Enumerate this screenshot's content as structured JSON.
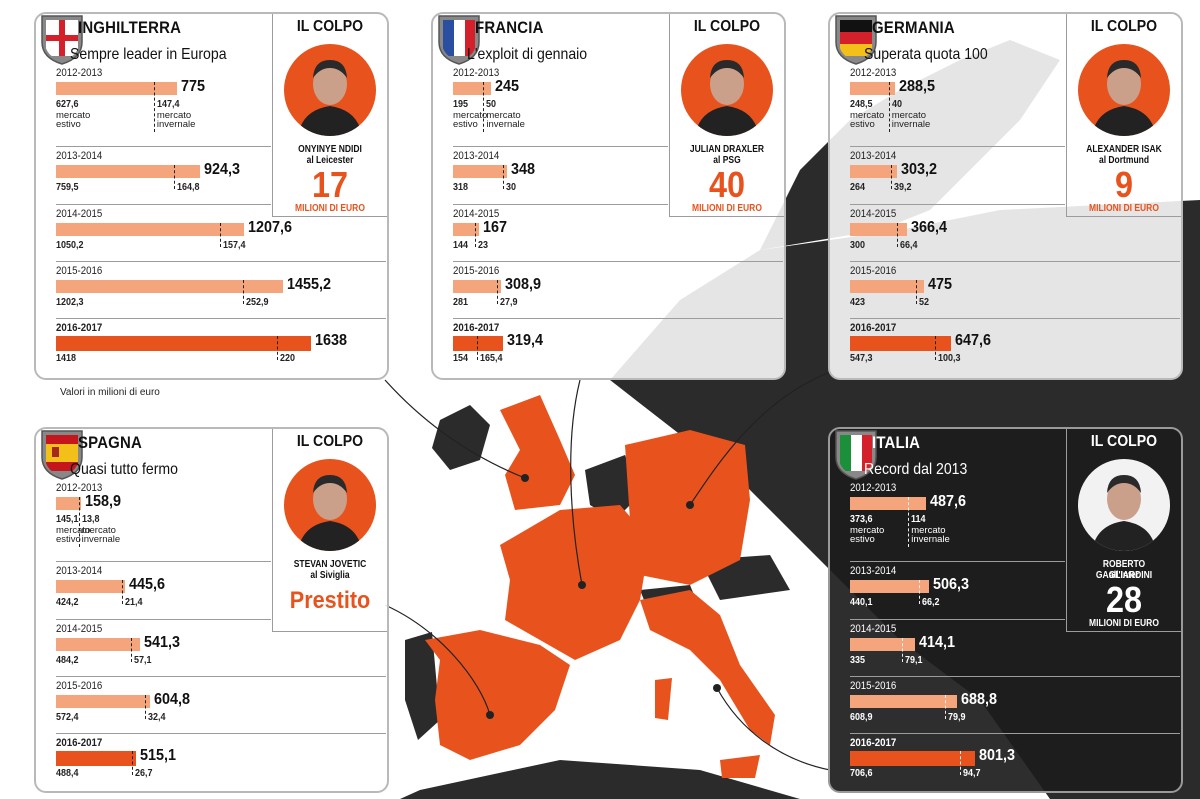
{
  "note": "Valori in milioni di euro",
  "colors": {
    "accent": "#e8531d",
    "bar": "#f4a57b",
    "map_dark": "#2b2b2b",
    "map_land": "#bdbdbd"
  },
  "panels": [
    {
      "id": "inghilterra",
      "country": "INGHILTERRA",
      "subtitle": "Sempre leader in Europa",
      "dark": false,
      "colpo": {
        "title": "IL COLPO",
        "name": "ONYINYE NDIDI",
        "club": "al Leicester",
        "big": "17",
        "unit": "MILIONI DI EURO",
        "photo": "orange"
      },
      "rows": [
        {
          "season": "2012-2013",
          "total": "775",
          "summer": "627,6",
          "winter": "147,4"
        },
        {
          "season": "2013-2014",
          "total": "924,3",
          "summer": "759,5",
          "winter": "164,8"
        },
        {
          "season": "2014-2015",
          "total": "1207,6",
          "summer": "1050,2",
          "winter": "157,4"
        },
        {
          "season": "2015-2016",
          "total": "1455,2",
          "summer": "1202,3",
          "winter": "252,9"
        },
        {
          "season": "2016-2017",
          "total": "1638",
          "summer": "1418",
          "winter": "220"
        }
      ]
    },
    {
      "id": "francia",
      "country": "FRANCIA",
      "subtitle": "L'exploit di gennaio",
      "dark": false,
      "colpo": {
        "title": "IL COLPO",
        "name": "JULIAN DRAXLER",
        "club": "al PSG",
        "big": "40",
        "unit": "MILIONI DI EURO",
        "photo": "orange"
      },
      "rows": [
        {
          "season": "2012-2013",
          "total": "245",
          "summer": "195",
          "winter": "50"
        },
        {
          "season": "2013-2014",
          "total": "348",
          "summer": "318",
          "winter": "30"
        },
        {
          "season": "2014-2015",
          "total": "167",
          "summer": "144",
          "winter": "23"
        },
        {
          "season": "2015-2016",
          "total": "308,9",
          "summer": "281",
          "winter": "27,9"
        },
        {
          "season": "2016-2017",
          "total": "319,4",
          "summer": "154",
          "winter": "165,4"
        }
      ]
    },
    {
      "id": "germania",
      "country": "GERMANIA",
      "subtitle": "Superata quota 100",
      "dark": false,
      "colpo": {
        "title": "IL COLPO",
        "name": "ALEXANDER ISAK",
        "club": "al Dortmund",
        "big": "9",
        "unit": "MILIONI DI EURO",
        "photo": "orange"
      },
      "rows": [
        {
          "season": "2012-2013",
          "total": "288,5",
          "summer": "248,5",
          "winter": "40"
        },
        {
          "season": "2013-2014",
          "total": "303,2",
          "summer": "264",
          "winter": "39,2"
        },
        {
          "season": "2014-2015",
          "total": "366,4",
          "summer": "300",
          "winter": "66,4"
        },
        {
          "season": "2015-2016",
          "total": "475",
          "summer": "423",
          "winter": "52"
        },
        {
          "season": "2016-2017",
          "total": "647,6",
          "summer": "547,3",
          "winter": "100,3"
        }
      ]
    },
    {
      "id": "spagna",
      "country": "SPAGNA",
      "subtitle": "Quasi tutto fermo",
      "dark": false,
      "colpo": {
        "title": "IL COLPO",
        "name": "STEVAN JOVETIC",
        "club": "al Siviglia",
        "big": "Prestito",
        "unit": "",
        "photo": "orange"
      },
      "rows": [
        {
          "season": "2012-2013",
          "total": "158,9",
          "summer": "145,1",
          "winter": "13,8"
        },
        {
          "season": "2013-2014",
          "total": "445,6",
          "summer": "424,2",
          "winter": "21,4"
        },
        {
          "season": "2014-2015",
          "total": "541,3",
          "summer": "484,2",
          "winter": "57,1"
        },
        {
          "season": "2015-2016",
          "total": "604,8",
          "summer": "572,4",
          "winter": "32,4"
        },
        {
          "season": "2016-2017",
          "total": "515,1",
          "summer": "488,4",
          "winter": "26,7"
        }
      ]
    },
    {
      "id": "italia",
      "country": "ITALIA",
      "subtitle": "Record dal 2013",
      "dark": true,
      "colpo": {
        "title": "IL COLPO",
        "name": "ROBERTO GAGLIARDINI",
        "club": "all'Inter",
        "big": "28",
        "unit": "MILIONI DI EURO",
        "photo": "white"
      },
      "rows": [
        {
          "season": "2012-2013",
          "total": "487,6",
          "summer": "373,6",
          "winter": "114"
        },
        {
          "season": "2013-2014",
          "total": "506,3",
          "summer": "440,1",
          "winter": "66,2"
        },
        {
          "season": "2014-2015",
          "total": "414,1",
          "summer": "335",
          "winter": "79,1"
        },
        {
          "season": "2015-2016",
          "total": "688,8",
          "summer": "608,9",
          "winter": "79,9"
        },
        {
          "season": "2016-2017",
          "total": "801,3",
          "summer": "706,6",
          "winter": "94,7"
        }
      ]
    }
  ],
  "captions": {
    "summer": "mercato estivo",
    "winter": "mercato invernale"
  },
  "chart_data": [
    {
      "type": "bar",
      "title": "INGHILTERRA",
      "subtitle": "Sempre leader in Europa",
      "categories": [
        "2012-2013",
        "2013-2014",
        "2014-2015",
        "2015-2016",
        "2016-2017"
      ],
      "series": [
        {
          "name": "mercato estivo",
          "values": [
            627.6,
            759.5,
            1050.2,
            1202.3,
            1418
          ]
        },
        {
          "name": "mercato invernale",
          "values": [
            147.4,
            164.8,
            157.4,
            252.9,
            220
          ]
        }
      ],
      "totals": [
        775,
        924.3,
        1207.6,
        1455.2,
        1638
      ]
    },
    {
      "type": "bar",
      "title": "FRANCIA",
      "subtitle": "L'exploit di gennaio",
      "categories": [
        "2012-2013",
        "2013-2014",
        "2014-2015",
        "2015-2016",
        "2016-2017"
      ],
      "series": [
        {
          "name": "mercato estivo",
          "values": [
            195,
            318,
            144,
            281,
            154
          ]
        },
        {
          "name": "mercato invernale",
          "values": [
            50,
            30,
            23,
            27.9,
            165.4
          ]
        }
      ],
      "totals": [
        245,
        348,
        167,
        308.9,
        319.4
      ]
    },
    {
      "type": "bar",
      "title": "GERMANIA",
      "subtitle": "Superata quota 100",
      "categories": [
        "2012-2013",
        "2013-2014",
        "2014-2015",
        "2015-2016",
        "2016-2017"
      ],
      "series": [
        {
          "name": "mercato estivo",
          "values": [
            248.5,
            264,
            300,
            423,
            547.3
          ]
        },
        {
          "name": "mercato invernale",
          "values": [
            40,
            39.2,
            66.4,
            52,
            100.3
          ]
        }
      ],
      "totals": [
        288.5,
        303.2,
        366.4,
        475,
        647.6
      ]
    },
    {
      "type": "bar",
      "title": "SPAGNA",
      "subtitle": "Quasi tutto fermo",
      "categories": [
        "2012-2013",
        "2013-2014",
        "2014-2015",
        "2015-2016",
        "2016-2017"
      ],
      "series": [
        {
          "name": "mercato estivo",
          "values": [
            145.1,
            424.2,
            484.2,
            572.4,
            488.4
          ]
        },
        {
          "name": "mercato invernale",
          "values": [
            13.8,
            21.4,
            57.1,
            32.4,
            26.7
          ]
        }
      ],
      "totals": [
        158.9,
        445.6,
        541.3,
        604.8,
        515.1
      ]
    },
    {
      "type": "bar",
      "title": "ITALIA",
      "subtitle": "Record dal 2013",
      "categories": [
        "2012-2013",
        "2013-2014",
        "2014-2015",
        "2015-2016",
        "2016-2017"
      ],
      "series": [
        {
          "name": "mercato estivo",
          "values": [
            373.6,
            440.1,
            335,
            608.9,
            706.6
          ]
        },
        {
          "name": "mercato invernale",
          "values": [
            114,
            66.2,
            79.1,
            79.9,
            94.7
          ]
        }
      ],
      "totals": [
        487.6,
        506.3,
        414.1,
        688.8,
        801.3
      ]
    }
  ]
}
